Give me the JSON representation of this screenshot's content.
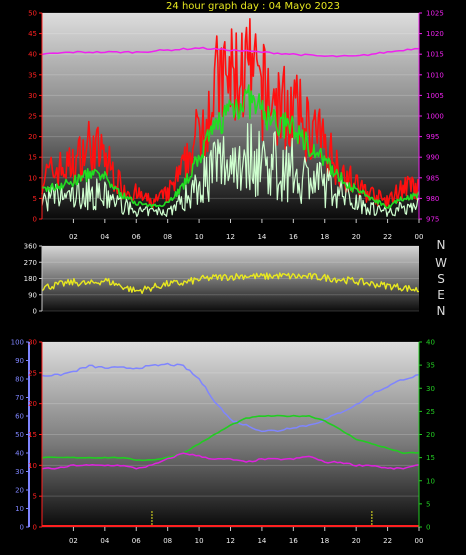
{
  "title": "24 hour graph day : 04 Mayo 2023",
  "compass": [
    "N",
    "W",
    "S",
    "E",
    "N"
  ],
  "colors": {
    "wind_gust": "#ff1010",
    "wind_avg": "#22dd22",
    "wind_speed": "#cfffcf",
    "pressure": "#ee22ee",
    "direction": "#e8e820",
    "humidity": "#7f85ff",
    "dewpoint": "#22cc22",
    "temperature": "#dd22dd",
    "rain": "#ff2020",
    "rain_marks": "#e8e820"
  },
  "chart_data": [
    {
      "type": "line",
      "x_tick_labels": [
        "02",
        "04",
        "06",
        "08",
        "10",
        "12",
        "14",
        "16",
        "18",
        "20",
        "22",
        "00"
      ],
      "left_ticks": [
        0,
        5,
        10,
        15,
        20,
        25,
        30,
        35,
        40,
        45,
        50
      ],
      "right_ticks": [
        975,
        980,
        985,
        990,
        995,
        1000,
        1005,
        1010,
        1015,
        1020,
        1025
      ],
      "ylim_left": [
        0,
        50
      ],
      "ylim_right": [
        975,
        1025
      ],
      "series": [
        {
          "key": "gust",
          "x": [
            0,
            1,
            2,
            3,
            4,
            5,
            6,
            7,
            8,
            9,
            10,
            11,
            12,
            13,
            14,
            15,
            16,
            17,
            18,
            19,
            20,
            21,
            22,
            23,
            24
          ],
          "values": [
            10,
            12,
            13,
            18,
            15,
            8,
            6,
            4,
            6,
            12,
            21,
            32,
            34,
            36,
            31,
            28,
            26,
            22,
            18,
            12,
            8,
            6,
            4,
            8,
            7
          ]
        },
        {
          "key": "average",
          "x": [
            0,
            1,
            2,
            3,
            4,
            5,
            6,
            7,
            8,
            9,
            10,
            11,
            12,
            13,
            14,
            15,
            16,
            17,
            18,
            19,
            20,
            21,
            22,
            23,
            24
          ],
          "values": [
            7,
            8,
            9,
            11,
            10,
            6,
            4,
            3,
            4,
            8,
            15,
            22,
            27,
            29,
            26,
            23,
            22,
            18,
            14,
            10,
            7,
            5,
            3,
            5,
            6
          ]
        },
        {
          "key": "speed",
          "x": [
            0,
            1,
            2,
            3,
            4,
            5,
            6,
            7,
            8,
            9,
            10,
            11,
            12,
            13,
            14,
            15,
            16,
            17,
            18,
            19,
            20,
            21,
            22,
            23,
            24
          ],
          "values": [
            5,
            6,
            6,
            7,
            6,
            4,
            2,
            2,
            2,
            5,
            10,
            14,
            16,
            17,
            16,
            14,
            13,
            11,
            9,
            7,
            5,
            3,
            2,
            3,
            4
          ]
        },
        {
          "key": "pressure",
          "x": [
            0,
            2,
            4,
            6,
            8,
            10,
            12,
            14,
            16,
            18,
            20,
            22,
            24
          ],
          "values": [
            1015,
            1015.5,
            1015.5,
            1015.5,
            1016,
            1016.5,
            1016,
            1015.5,
            1015,
            1014.5,
            1014.5,
            1015.5,
            1016.5
          ]
        }
      ]
    },
    {
      "type": "line",
      "x_tick_labels": [],
      "y_ticks": [
        0,
        90,
        180,
        270,
        360
      ],
      "ylim": [
        0,
        360
      ],
      "series": [
        {
          "key": "direction",
          "x": [
            0,
            1,
            2,
            3,
            4,
            5,
            6,
            7,
            8,
            9,
            10,
            11,
            12,
            13,
            14,
            15,
            16,
            17,
            18,
            19,
            20,
            21,
            22,
            23,
            24
          ],
          "values": [
            130,
            145,
            160,
            150,
            170,
            140,
            110,
            130,
            150,
            155,
            175,
            185,
            190,
            195,
            190,
            195,
            192,
            190,
            185,
            175,
            165,
            150,
            140,
            130,
            115
          ]
        }
      ]
    },
    {
      "type": "line",
      "x_tick_labels": [
        "02",
        "04",
        "06",
        "08",
        "10",
        "12",
        "14",
        "16",
        "18",
        "20",
        "22",
        "00"
      ],
      "humidity_ticks": [
        0,
        10,
        20,
        30,
        40,
        50,
        60,
        70,
        80,
        90,
        100
      ],
      "left_ticks": [
        0,
        5,
        10,
        15,
        20,
        25,
        30
      ],
      "right_ticks": [
        0,
        5,
        10,
        15,
        20,
        25,
        30,
        35,
        40
      ],
      "ylim_humidity": [
        0,
        100
      ],
      "ylim_left": [
        0,
        30
      ],
      "ylim_right": [
        0,
        40
      ],
      "series": [
        {
          "key": "humidity",
          "x": [
            0,
            1,
            2,
            3,
            4,
            5,
            6,
            7,
            8,
            9,
            10,
            11,
            12,
            13,
            14,
            15,
            16,
            17,
            18,
            19,
            20,
            21,
            22,
            23,
            24
          ],
          "values": [
            82,
            82,
            84,
            87,
            86,
            86,
            86,
            87,
            88,
            87,
            80,
            68,
            58,
            55,
            52,
            52,
            54,
            55,
            58,
            62,
            66,
            72,
            76,
            80,
            82
          ]
        },
        {
          "key": "dewpoint",
          "x": [
            0,
            1,
            2,
            3,
            4,
            5,
            6,
            7,
            8,
            9,
            10,
            11,
            12,
            13,
            14,
            15,
            16,
            17,
            18,
            19,
            20,
            21,
            22,
            23,
            24
          ],
          "values": [
            15,
            15,
            15,
            15,
            15,
            15,
            14.5,
            14.5,
            15,
            16,
            18,
            20,
            22,
            23.5,
            24,
            24,
            24,
            24,
            23,
            21,
            19,
            18,
            17,
            16,
            16
          ]
        },
        {
          "key": "temperature",
          "x": [
            0,
            1,
            2,
            3,
            4,
            5,
            6,
            7,
            8,
            9,
            10,
            11,
            12,
            13,
            14,
            15,
            16,
            17,
            18,
            19,
            20,
            21,
            22,
            23,
            24
          ],
          "values": [
            9.5,
            9.5,
            10,
            10,
            10,
            10,
            9.5,
            10,
            11,
            12,
            11.5,
            11,
            11,
            10.5,
            11,
            11,
            11,
            11.5,
            10.5,
            10.5,
            10,
            10,
            9.5,
            9.5,
            10
          ]
        },
        {
          "key": "rain",
          "x": [
            0,
            24
          ],
          "values": [
            0,
            0
          ]
        }
      ],
      "rain_marks_x": [
        7,
        21
      ]
    }
  ]
}
